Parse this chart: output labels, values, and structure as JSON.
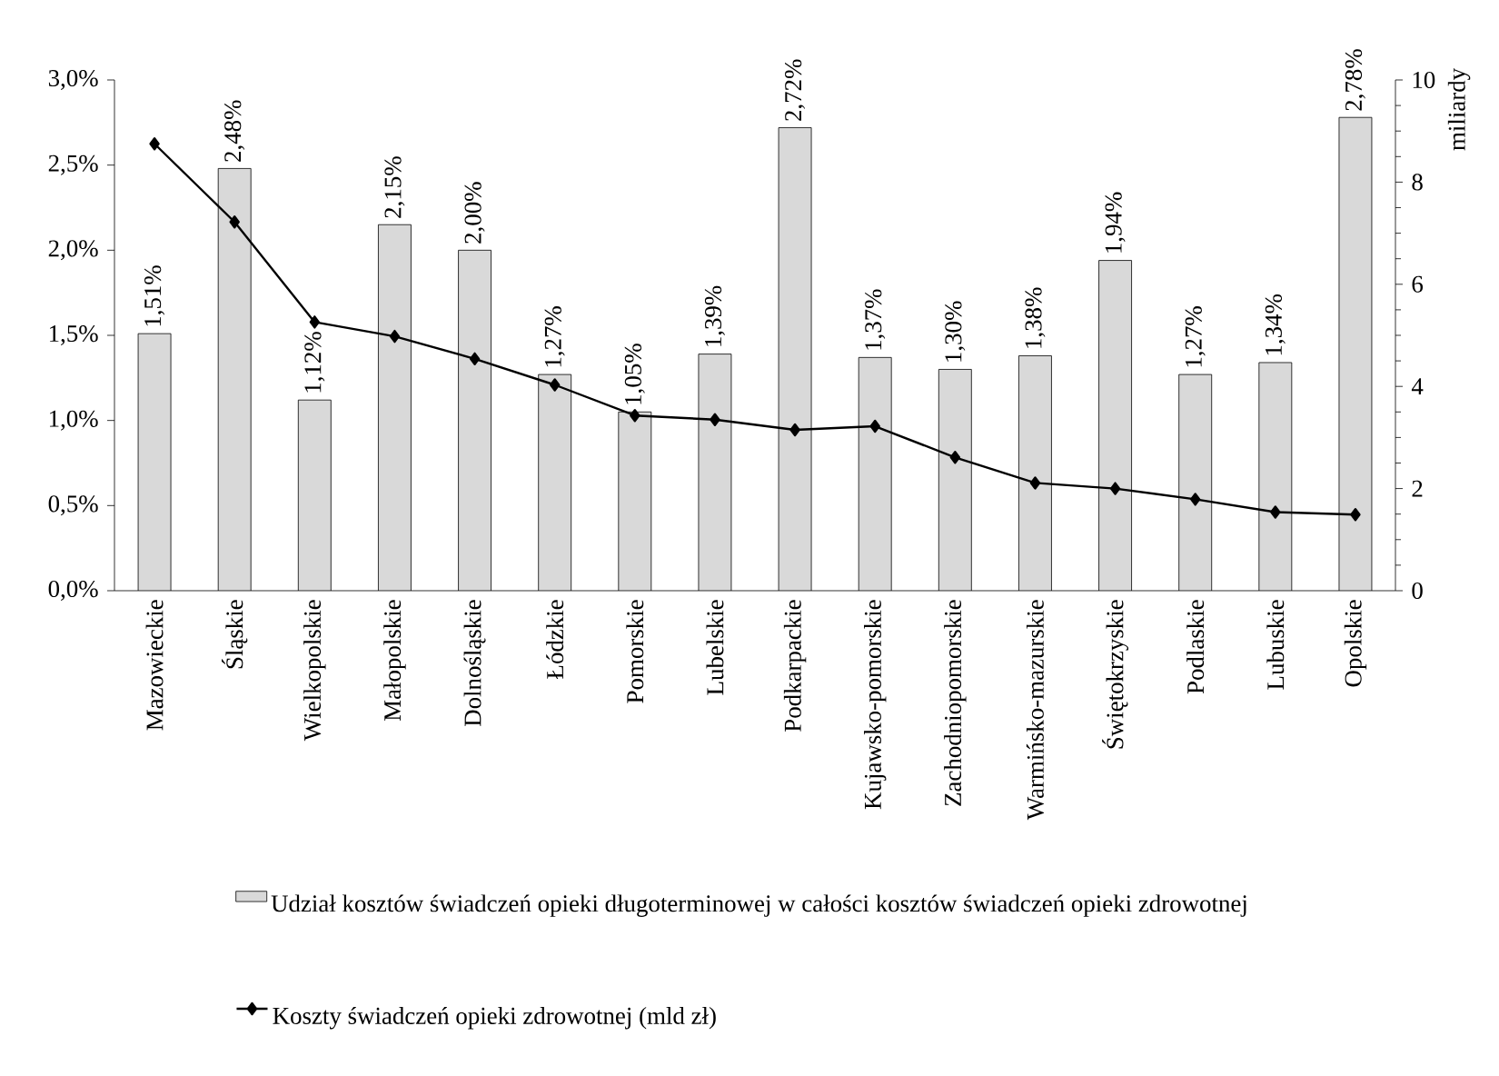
{
  "chart_data": {
    "type": "bar",
    "categories": [
      "Mazowieckie",
      "Śląskie",
      "Wielkopolskie",
      "Małopolskie",
      "Dolnośląskie",
      "Łódzkie",
      "Pomorskie",
      "Lubelskie",
      "Podkarpackie",
      "Kujawsko-pomorskie",
      "Zachodniopomorskie",
      "Warmińsko-mazurskie",
      "Świętokrzyskie",
      "Podlaskie",
      "Lubuskie",
      "Opolskie"
    ],
    "series": [
      {
        "name": "Udział kosztów świadczeń opieki długoterminowej w całości kosztów świadczeń opieki zdrowotnej",
        "color": "#d9d9d9",
        "values": [
          1.51,
          2.48,
          1.12,
          2.15,
          2.0,
          1.27,
          1.05,
          1.39,
          2.72,
          1.37,
          1.3,
          1.38,
          1.94,
          1.27,
          1.34,
          2.78
        ],
        "value_labels": [
          "1,51%",
          "2,48%",
          "1,12%",
          "2,15%",
          "2,00%",
          "1,27%",
          "1,05%",
          "1,39%",
          "2,72%",
          "1,37%",
          "1,30%",
          "1,38%",
          "1,94%",
          "1,27%",
          "1,34%",
          "2,78%"
        ]
      },
      {
        "name": "Koszty świadczeń opieki zdrowotnej (mld zł)",
        "type": "line",
        "axis": "y2",
        "color": "#000000",
        "marker": "diamond",
        "values": [
          8.75,
          7.22,
          5.26,
          4.98,
          4.54,
          4.03,
          3.43,
          3.35,
          3.15,
          3.22,
          2.61,
          2.11,
          2.0,
          1.79,
          1.54,
          1.49
        ]
      }
    ],
    "ylim": [
      0,
      3
    ],
    "yticks": [
      {
        "value": 0,
        "label": "0,0%"
      },
      {
        "value": 0.5,
        "label": "0,5%"
      },
      {
        "value": 1,
        "label": "1,0%"
      },
      {
        "value": 1.5,
        "label": "1,5%"
      },
      {
        "value": 2,
        "label": "2,0%"
      },
      {
        "value": 2.5,
        "label": "2,5%"
      },
      {
        "value": 3,
        "label": "3,0%"
      }
    ],
    "y2lim": [
      0,
      10
    ],
    "y2ticks": [
      0,
      2,
      4,
      6,
      8,
      10
    ],
    "y2label": "miliardy",
    "grid": false,
    "legend": "bottom"
  }
}
